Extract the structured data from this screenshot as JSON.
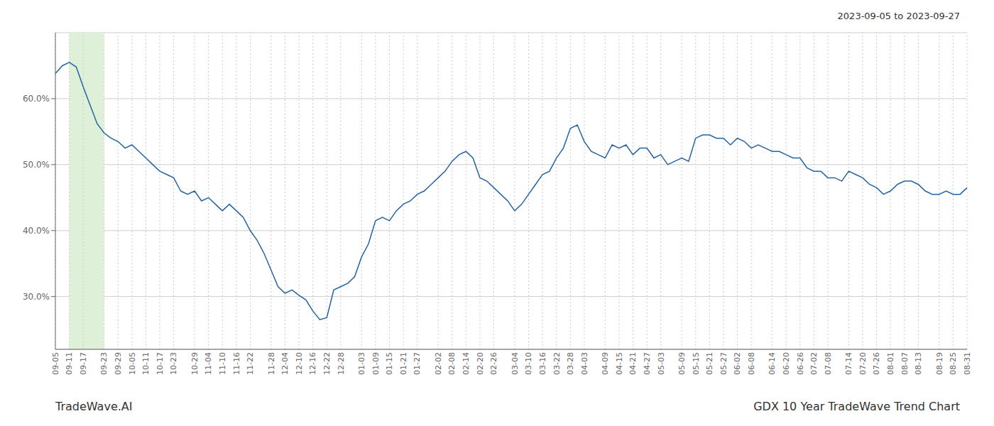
{
  "chart_data": {
    "type": "line",
    "title": "2023-09-05 to 2023-09-27",
    "annotations": [
      "TradeWave.AI",
      "GDX 10 Year TradeWave Trend Chart"
    ],
    "color": "#2464a4",
    "grid": true,
    "ylim": [
      0.22,
      0.7
    ],
    "yticks": [
      {
        "value": 0.3,
        "label": "30.0%"
      },
      {
        "value": 0.4,
        "label": "40.0%"
      },
      {
        "value": 0.5,
        "label": "50.0%"
      },
      {
        "value": 0.6,
        "label": "60.0%"
      }
    ],
    "highlight": {
      "from": "09-11",
      "to": "09-23",
      "color": "#dff0d8"
    },
    "categories": [
      "09-05",
      null,
      "09-11",
      null,
      "09-17",
      null,
      null,
      "09-23",
      null,
      "09-29",
      null,
      "10-05",
      null,
      "10-11",
      null,
      "10-17",
      null,
      "10-23",
      null,
      null,
      "10-29",
      null,
      "11-04",
      null,
      "11-10",
      null,
      "11-16",
      null,
      "11-22",
      null,
      null,
      "11-28",
      null,
      "12-04",
      null,
      "12-10",
      null,
      "12-16",
      null,
      "12-22",
      null,
      "12-28",
      null,
      null,
      "01-03",
      null,
      "01-09",
      null,
      "01-15",
      null,
      "01-21",
      null,
      "01-27",
      null,
      null,
      "02-02",
      null,
      "02-08",
      null,
      "02-14",
      null,
      "02-20",
      null,
      "02-26",
      null,
      null,
      "03-04",
      null,
      "03-10",
      null,
      "03-16",
      null,
      "03-22",
      null,
      "03-28",
      null,
      "04-03",
      null,
      null,
      "04-09",
      null,
      "04-15",
      null,
      "04-21",
      null,
      "04-27",
      null,
      "05-03",
      null,
      null,
      "05-09",
      null,
      "05-15",
      null,
      "05-21",
      null,
      "05-27",
      null,
      "06-02",
      null,
      "06-08",
      null,
      null,
      "06-14",
      null,
      "06-20",
      null,
      "06-26",
      null,
      "07-02",
      null,
      "07-08",
      null,
      null,
      "07-14",
      null,
      "07-20",
      null,
      "07-26",
      null,
      "08-01",
      null,
      "08-07",
      null,
      "08-13",
      null,
      null,
      "08-19",
      null,
      "08-25",
      null,
      "08-31"
    ],
    "values": [
      0.638,
      0.65,
      0.655,
      0.648,
      0.618,
      0.59,
      0.562,
      0.548,
      0.54,
      0.535,
      0.525,
      0.53,
      0.52,
      0.51,
      0.5,
      0.49,
      0.485,
      0.48,
      0.46,
      0.455,
      0.46,
      0.445,
      0.45,
      0.44,
      0.43,
      0.44,
      0.43,
      0.42,
      0.4,
      0.385,
      0.365,
      0.34,
      0.315,
      0.305,
      0.31,
      0.302,
      0.295,
      0.278,
      0.265,
      0.268,
      0.31,
      0.315,
      0.32,
      0.33,
      0.36,
      0.38,
      0.415,
      0.42,
      0.415,
      0.43,
      0.44,
      0.445,
      0.455,
      0.46,
      0.47,
      0.48,
      0.49,
      0.505,
      0.515,
      0.52,
      0.51,
      0.48,
      0.475,
      0.465,
      0.455,
      0.445,
      0.43,
      0.44,
      0.455,
      0.47,
      0.485,
      0.49,
      0.51,
      0.525,
      0.555,
      0.56,
      0.535,
      0.52,
      0.515,
      0.51,
      0.53,
      0.525,
      0.53,
      0.515,
      0.525,
      0.525,
      0.51,
      0.515,
      0.5,
      0.505,
      0.51,
      0.505,
      0.54,
      0.545,
      0.545,
      0.54,
      0.54,
      0.53,
      0.54,
      0.535,
      0.525,
      0.53,
      0.525,
      0.52,
      0.52,
      0.515,
      0.51,
      0.51,
      0.495,
      0.49,
      0.49,
      0.48,
      0.48,
      0.475,
      0.49,
      0.485,
      0.48,
      0.47,
      0.465,
      0.455,
      0.46,
      0.47,
      0.475,
      0.475,
      0.47,
      0.46,
      0.455,
      0.455,
      0.46,
      0.455,
      0.455,
      0.465
    ]
  }
}
